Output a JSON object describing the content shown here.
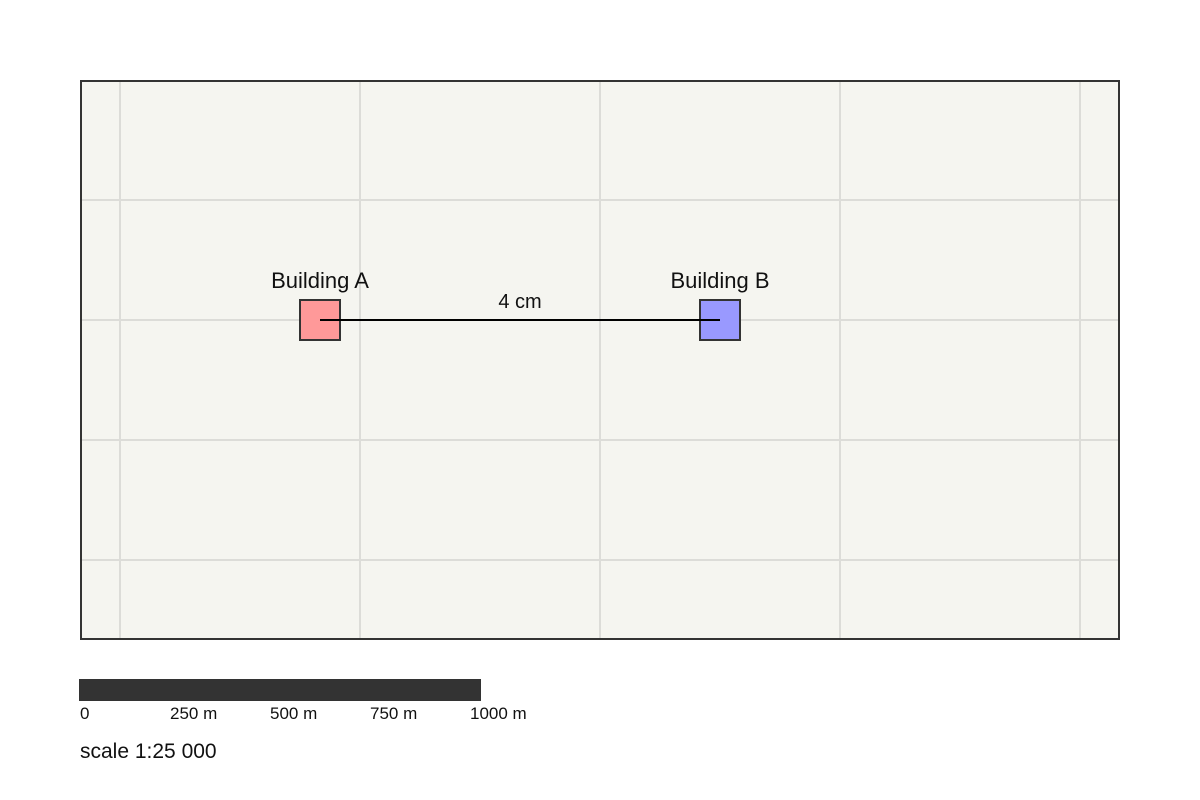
{
  "map": {
    "background_color": "#f5f5f0",
    "grid_color": "#dcdcd8",
    "frame_color": "#333333"
  },
  "buildings": [
    {
      "name": "building-a",
      "label": "Building A",
      "color": "#ff9999"
    },
    {
      "name": "building-b",
      "label": "Building B",
      "color": "#9999ff"
    }
  ],
  "distance_label": "4 cm",
  "scale_bar": {
    "color": "#333333",
    "ticks": [
      "0",
      "250 m",
      "500 m",
      "750 m",
      "1000 m"
    ]
  },
  "scale_text": "scale 1:25 000"
}
